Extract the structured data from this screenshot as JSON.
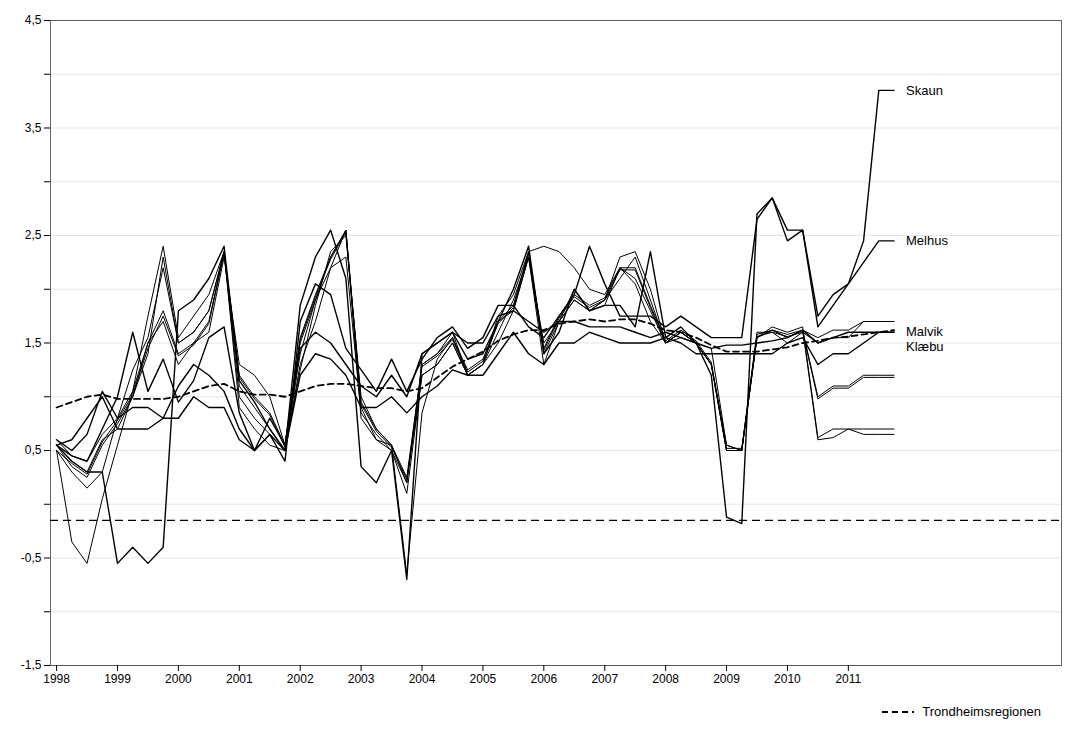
{
  "chart_data": {
    "type": "line",
    "x": [
      1998,
      1998.25,
      1998.5,
      1998.75,
      1999,
      1999.25,
      1999.5,
      1999.75,
      2000,
      2000.25,
      2000.5,
      2000.75,
      2001,
      2001.25,
      2001.5,
      2001.75,
      2002,
      2002.25,
      2002.5,
      2002.75,
      2003,
      2003.25,
      2003.5,
      2003.75,
      2004,
      2004.25,
      2004.5,
      2004.75,
      2005,
      2005.25,
      2005.5,
      2005.75,
      2006,
      2006.25,
      2006.5,
      2006.75,
      2007,
      2007.25,
      2007.5,
      2007.75,
      2008,
      2008.25,
      2008.5,
      2008.75,
      2009,
      2009.25,
      2009.5,
      2009.75,
      2010,
      2010.25,
      2010.5,
      2010.75,
      2011,
      2011.25,
      2011.5,
      2011.75
    ],
    "xlim": [
      1997.9,
      2014.5
    ],
    "xticks": [
      1998,
      1999,
      2000,
      2001,
      2002,
      2003,
      2004,
      2005,
      2006,
      2007,
      2008,
      2009,
      2010,
      2011
    ],
    "ylim": [
      -1.5,
      4.5
    ],
    "yticks": [
      {
        "value": -1.5,
        "label": "-1,5"
      },
      {
        "value": -1.0,
        "label": ""
      },
      {
        "value": -0.5,
        "label": "-0,5"
      },
      {
        "value": 0.0,
        "label": ""
      },
      {
        "value": 0.5,
        "label": "0,5"
      },
      {
        "value": 1.0,
        "label": ""
      },
      {
        "value": 1.5,
        "label": "1,5"
      },
      {
        "value": 2.0,
        "label": ""
      },
      {
        "value": 2.5,
        "label": "2,5"
      },
      {
        "value": 3.0,
        "label": ""
      },
      {
        "value": 3.5,
        "label": "3,5"
      },
      {
        "value": 4.0,
        "label": ""
      },
      {
        "value": 4.5,
        "label": "4,5"
      }
    ],
    "grid": "y",
    "legend": "lower right",
    "hline": -0.15,
    "series": [
      {
        "values": [
          0.5,
          0.3,
          0.15,
          0.3,
          0.8,
          1.25,
          1.55,
          2.2,
          1.5,
          1.6,
          1.8,
          2.35,
          1.0,
          0.8,
          0.65,
          0.5,
          1.3,
          1.7,
          2.2,
          2.55,
          0.8,
          0.6,
          0.5,
          0.2,
          1.3,
          1.4,
          1.6,
          1.2,
          1.3,
          1.6,
          1.9,
          2.3,
          1.3,
          1.7,
          2.0,
          1.8,
          1.9,
          2.3,
          2.35,
          2.0,
          1.5,
          1.6,
          1.5,
          1.3,
          0.55,
          0.5,
          1.55,
          1.62,
          1.55,
          1.62,
          1.55,
          1.62,
          1.62,
          1.7,
          1.7,
          1.7
        ]
      },
      {
        "values": [
          0.5,
          -0.35,
          -0.55,
          0.05,
          0.55,
          1.05,
          1.75,
          2.4,
          1.55,
          1.75,
          1.95,
          2.35,
          0.9,
          0.7,
          0.55,
          0.5,
          1.25,
          1.85,
          2.35,
          2.5,
          1.0,
          0.7,
          0.55,
          -0.65,
          0.85,
          1.35,
          1.55,
          1.2,
          1.3,
          1.75,
          1.95,
          2.35,
          2.4,
          2.35,
          2.2,
          2.0,
          1.95,
          2.2,
          2.05,
          1.7,
          1.5,
          1.55,
          1.5,
          1.45,
          0.55,
          0.5,
          1.55,
          1.62,
          1.55,
          1.62,
          0.6,
          0.62,
          0.7,
          0.65,
          0.65,
          0.65
        ]
      },
      {
        "values": [
          0.55,
          0.4,
          0.3,
          0.6,
          0.7,
          1.0,
          1.5,
          1.7,
          1.3,
          1.5,
          1.6,
          2.3,
          1.3,
          1.2,
          1.0,
          0.55,
          1.5,
          1.9,
          2.3,
          2.55,
          0.9,
          0.6,
          0.55,
          0.2,
          1.2,
          1.3,
          1.5,
          1.2,
          1.3,
          1.7,
          1.8,
          2.3,
          1.4,
          1.7,
          1.9,
          1.8,
          1.9,
          2.1,
          2.3,
          1.9,
          1.5,
          1.6,
          1.5,
          1.3,
          0.5,
          0.5,
          1.6,
          1.6,
          1.5,
          1.6,
          1.5,
          1.55,
          1.55,
          1.7,
          1.7,
          1.7
        ]
      },
      {
        "values": [
          0.55,
          0.35,
          0.25,
          0.55,
          0.75,
          1.0,
          1.4,
          2.3,
          1.5,
          1.6,
          1.8,
          2.35,
          1.1,
          0.9,
          0.7,
          0.5,
          1.4,
          1.9,
          2.2,
          2.3,
          0.85,
          0.65,
          0.5,
          0.1,
          1.2,
          1.3,
          1.5,
          1.2,
          1.3,
          1.5,
          1.8,
          2.3,
          1.5,
          1.7,
          1.9,
          1.8,
          1.85,
          2.2,
          2.1,
          1.8,
          1.5,
          1.6,
          1.5,
          1.3,
          0.5,
          0.5,
          1.55,
          1.65,
          1.6,
          1.65,
          0.62,
          0.7,
          0.7,
          0.7,
          0.7,
          0.7
        ]
      },
      {
        "values": [
          0.6,
          0.45,
          0.4,
          0.65,
          0.8,
          1.05,
          1.5,
          1.8,
          1.4,
          1.5,
          1.7,
          2.35,
          1.2,
          1.0,
          0.85,
          0.55,
          1.55,
          1.95,
          2.3,
          2.55,
          0.95,
          0.7,
          0.55,
          0.25,
          1.3,
          1.4,
          1.55,
          1.25,
          1.35,
          1.7,
          1.85,
          2.35,
          1.45,
          1.75,
          1.95,
          1.85,
          1.92,
          2.2,
          2.2,
          1.85,
          1.52,
          1.62,
          1.52,
          1.32,
          0.52,
          0.52,
          1.58,
          1.62,
          1.58,
          1.62,
          1.0,
          1.1,
          1.1,
          1.2,
          1.2,
          1.2
        ]
      },
      {
        "values": [
          0.5,
          0.38,
          0.28,
          0.58,
          0.78,
          1.02,
          1.45,
          1.75,
          1.38,
          1.48,
          1.68,
          2.33,
          1.18,
          0.98,
          0.83,
          0.53,
          1.53,
          1.93,
          2.28,
          2.53,
          0.93,
          0.68,
          0.53,
          0.23,
          1.28,
          1.38,
          1.53,
          1.23,
          1.33,
          1.68,
          1.83,
          2.33,
          1.43,
          1.73,
          1.93,
          1.83,
          1.9,
          2.18,
          2.18,
          1.83,
          1.5,
          1.6,
          1.5,
          1.3,
          0.5,
          0.5,
          1.56,
          1.6,
          1.56,
          1.6,
          0.98,
          1.08,
          1.08,
          1.18,
          1.18,
          1.18
        ]
      },
      {
        "name": "Skaun",
        "values": [
          0.55,
          0.4,
          0.3,
          0.3,
          -0.55,
          -0.4,
          -0.55,
          -0.4,
          1.8,
          1.9,
          2.1,
          2.4,
          1.15,
          0.95,
          0.7,
          0.5,
          1.85,
          2.3,
          2.55,
          2.1,
          0.35,
          0.2,
          0.5,
          -0.7,
          1.4,
          1.5,
          1.6,
          1.35,
          1.4,
          1.7,
          2.0,
          2.4,
          1.4,
          1.6,
          2.0,
          1.8,
          1.85,
          1.85,
          1.65,
          2.35,
          1.55,
          1.65,
          1.5,
          1.2,
          -0.12,
          -0.18,
          2.7,
          2.85,
          2.45,
          2.55,
          1.65,
          1.85,
          2.05,
          2.45,
          3.85,
          3.85
        ]
      },
      {
        "name": "Melhus",
        "values": [
          0.55,
          0.45,
          0.4,
          0.7,
          1.0,
          1.6,
          1.05,
          1.35,
          0.95,
          1.15,
          1.55,
          1.65,
          0.85,
          0.5,
          0.65,
          0.4,
          1.7,
          2.05,
          1.95,
          1.45,
          1.25,
          1.05,
          1.35,
          1.05,
          1.35,
          1.55,
          1.65,
          1.45,
          1.55,
          1.85,
          1.85,
          1.65,
          1.55,
          1.75,
          1.95,
          2.4,
          2.05,
          1.75,
          1.75,
          1.75,
          1.65,
          1.75,
          1.65,
          1.55,
          1.55,
          1.55,
          2.65,
          2.85,
          2.55,
          2.55,
          1.75,
          1.95,
          2.05,
          2.25,
          2.45,
          2.45
        ]
      },
      {
        "name": "Malvik",
        "values": [
          0.6,
          0.5,
          0.65,
          1.05,
          0.8,
          0.9,
          0.9,
          0.8,
          1.1,
          1.3,
          1.2,
          1.05,
          0.7,
          0.5,
          0.8,
          0.55,
          1.45,
          1.6,
          1.5,
          1.3,
          1.1,
          1.0,
          1.2,
          1.0,
          1.4,
          1.5,
          1.6,
          1.5,
          1.5,
          1.75,
          1.8,
          1.7,
          1.6,
          1.7,
          1.7,
          1.65,
          1.65,
          1.65,
          1.6,
          1.55,
          1.6,
          1.55,
          1.5,
          1.45,
          1.48,
          1.48,
          1.5,
          1.52,
          1.55,
          1.62,
          1.5,
          1.55,
          1.6,
          1.6,
          1.6,
          1.6
        ]
      },
      {
        "name": "Klæbu",
        "values": [
          0.55,
          0.6,
          0.8,
          1.0,
          0.7,
          0.7,
          0.7,
          0.8,
          0.8,
          1.0,
          0.9,
          0.9,
          0.6,
          0.5,
          0.65,
          0.5,
          1.2,
          1.4,
          1.35,
          1.2,
          0.9,
          0.9,
          1.0,
          0.85,
          1.0,
          1.1,
          1.25,
          1.2,
          1.2,
          1.4,
          1.6,
          1.4,
          1.3,
          1.5,
          1.5,
          1.6,
          1.55,
          1.5,
          1.5,
          1.5,
          1.55,
          1.5,
          1.4,
          1.4,
          1.4,
          1.4,
          1.4,
          1.4,
          1.5,
          1.55,
          1.3,
          1.4,
          1.4,
          1.5,
          1.6,
          1.6
        ]
      },
      {
        "name": "Trondheimsregionen",
        "line_style": "dashed",
        "values": [
          0.9,
          0.95,
          1.0,
          1.02,
          0.98,
          0.98,
          0.98,
          0.98,
          1.0,
          1.05,
          1.1,
          1.12,
          1.05,
          1.02,
          1.02,
          1.0,
          1.05,
          1.1,
          1.12,
          1.12,
          1.1,
          1.08,
          1.08,
          1.05,
          1.08,
          1.18,
          1.28,
          1.35,
          1.42,
          1.52,
          1.58,
          1.62,
          1.62,
          1.68,
          1.7,
          1.72,
          1.7,
          1.72,
          1.72,
          1.68,
          1.62,
          1.6,
          1.55,
          1.48,
          1.42,
          1.42,
          1.42,
          1.44,
          1.46,
          1.5,
          1.52,
          1.55,
          1.56,
          1.58,
          1.6,
          1.62
        ]
      }
    ]
  }
}
